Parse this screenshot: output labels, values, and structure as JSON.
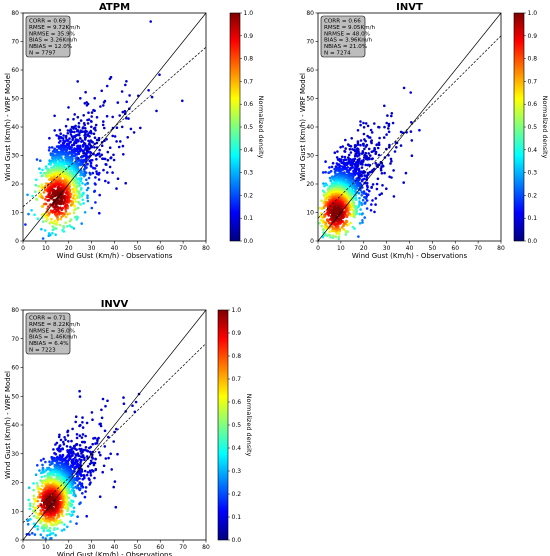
{
  "colorbar": {
    "label": "Normalized density",
    "ticks": [
      "0.0",
      "0.1",
      "0.2",
      "0.3",
      "0.4",
      "0.5",
      "0.6",
      "0.7",
      "0.8",
      "0.9",
      "1.0"
    ],
    "colors": [
      "#00007f",
      "#0000ff",
      "#007fff",
      "#00ffff",
      "#7fff7f",
      "#ffff00",
      "#ff7f00",
      "#ff0000",
      "#7f0000"
    ]
  },
  "chart_data": [
    {
      "type": "scatter",
      "title": "ATPM",
      "xlabel": "Wind GUst (Km/h) - Observations",
      "ylabel": "Wind Gust (Km/h) - WRF Model",
      "xlim": [
        0,
        80
      ],
      "ylim": [
        0,
        80
      ],
      "xticks": [
        "0",
        "10",
        "20",
        "30",
        "40",
        "50",
        "60",
        "70",
        "80"
      ],
      "yticks": [
        "0",
        "10",
        "20",
        "30",
        "40",
        "50",
        "60",
        "70",
        "80"
      ],
      "stats": [
        "CORR = 0.69",
        "RMSE = 9.72Km/h",
        "NRMSE = 35.9%",
        "BIAS = 3.26Km/h",
        "NBIAS = 12.0%",
        "N = 7797"
      ],
      "identity_line": {
        "slope": 1,
        "intercept": 0
      },
      "fit_line": {
        "slope": 0.7,
        "intercept": 12
      },
      "density_core": {
        "x": 15,
        "y": 15,
        "spread_x": 7,
        "spread_y": 7
      },
      "n": 7797,
      "colorbar_range": [
        0.0,
        1.0
      ]
    },
    {
      "type": "scatter",
      "title": "INVT",
      "xlabel": "Wind Gust (Km/h) - Observations",
      "ylabel": "Wind Gust (Km/h) - WRF Model",
      "xlim": [
        0,
        80
      ],
      "ylim": [
        0,
        80
      ],
      "xticks": [
        "0",
        "10",
        "20",
        "30",
        "40",
        "50",
        "60",
        "70",
        "80"
      ],
      "yticks": [
        "0",
        "10",
        "20",
        "30",
        "40",
        "50",
        "60",
        "70",
        "80"
      ],
      "stats": [
        "CORR = 0.66",
        "RMSE = 9.05Km/h",
        "NRMSE = 48.0%",
        "BIAS = 3.96Km/h",
        "NBIAS = 21.0%",
        "N = 7274"
      ],
      "identity_line": {
        "slope": 1,
        "intercept": 0
      },
      "fit_line": {
        "slope": 0.8,
        "intercept": 8
      },
      "density_core": {
        "x": 8,
        "y": 10,
        "spread_x": 6,
        "spread_y": 6
      },
      "n": 7274,
      "colorbar_range": [
        0.0,
        1.0
      ]
    },
    {
      "type": "scatter",
      "title": "INVV",
      "xlabel": "Wind Gust (Km/h) - Observations",
      "ylabel": "Wind Gust (Km/h) - WRF Model",
      "xlim": [
        0,
        80
      ],
      "ylim": [
        0,
        80
      ],
      "xticks": [
        "0",
        "10",
        "20",
        "30",
        "40",
        "50",
        "60",
        "70",
        "80"
      ],
      "yticks": [
        "0",
        "10",
        "20",
        "30",
        "40",
        "50",
        "60",
        "70",
        "80"
      ],
      "stats": [
        "CORR = 0.71",
        "RMSE = 8.22Km/h",
        "NRMSE = 36.0%",
        "BIAS = 1.46Km/h",
        "NBIAS = 6.4%",
        "N = 7223"
      ],
      "identity_line": {
        "slope": 1,
        "intercept": 0
      },
      "fit_line": {
        "slope": 0.78,
        "intercept": 6
      },
      "density_core": {
        "x": 12,
        "y": 13,
        "spread_x": 6,
        "spread_y": 6
      },
      "n": 7223,
      "colorbar_range": [
        0.0,
        1.0
      ]
    }
  ]
}
